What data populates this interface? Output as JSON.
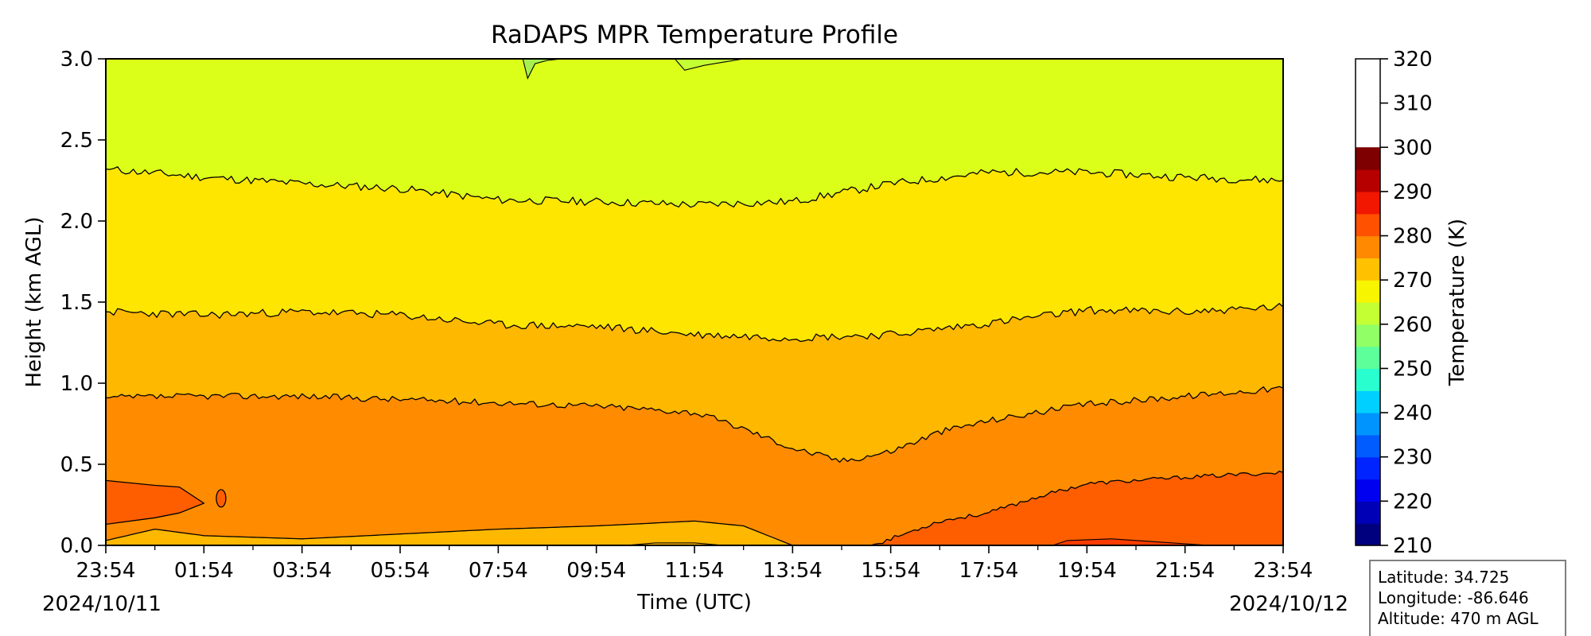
{
  "chart_data": {
    "type": "contourf",
    "title": "RaDAPS MPR Temperature Profile",
    "xlabel": "Time (UTC)",
    "ylabel": "Height (km AGL)",
    "x_ticks": [
      "23:54",
      "01:54",
      "03:54",
      "05:54",
      "07:54",
      "09:54",
      "11:54",
      "13:54",
      "15:54",
      "17:54",
      "19:54",
      "21:54",
      "23:54"
    ],
    "x_tick_hours": [
      0,
      2,
      4,
      6,
      8,
      10,
      12,
      14,
      16,
      18,
      20,
      22,
      24
    ],
    "xlim_hours": [
      0,
      24
    ],
    "start_date": "2024/10/11",
    "end_date": "2024/10/12",
    "y_ticks": [
      "0.0",
      "0.5",
      "1.0",
      "1.5",
      "2.0",
      "2.5",
      "3.0"
    ],
    "ylim": [
      0,
      3
    ],
    "colorbar": {
      "label": "Temperature (K)",
      "range": [
        210,
        320
      ],
      "step": 5,
      "ticks": [
        "210",
        "220",
        "230",
        "240",
        "250",
        "260",
        "270",
        "280",
        "290",
        "300",
        "310",
        "320"
      ],
      "colors": [
        "#00007f",
        "#0000b6",
        "#0000f1",
        "#0024ff",
        "#005cff",
        "#0094ff",
        "#00d0ff",
        "#29ffce",
        "#5dff9a",
        "#91ff66",
        "#c4ff33",
        "#f8f500",
        "#ffc100",
        "#ff8900",
        "#ff5100",
        "#f11700",
        "#b60000",
        "#7f0000"
      ]
    },
    "level_bands": [
      {
        "range": [
          275,
          280
        ],
        "color": "#dcff1a"
      },
      {
        "range": [
          280,
          285
        ],
        "color": "#ffe600"
      },
      {
        "range": [
          285,
          290
        ],
        "color": "#ffb800"
      },
      {
        "range": [
          290,
          295
        ],
        "color": "#ff8c00"
      },
      {
        "range": [
          295,
          300
        ],
        "color": "#ff5e00"
      },
      {
        "range": [
          300,
          305
        ],
        "color": "#ff3c00"
      }
    ],
    "contours": [
      {
        "level": 275,
        "points": [
          [
            0,
            2.32
          ],
          [
            2,
            2.27
          ],
          [
            4,
            2.23
          ],
          [
            6,
            2.2
          ],
          [
            8,
            2.13
          ],
          [
            10,
            2.12
          ],
          [
            12,
            2.1
          ],
          [
            14,
            2.12
          ],
          [
            16,
            2.23
          ],
          [
            18,
            2.3
          ],
          [
            20,
            2.3
          ],
          [
            22,
            2.27
          ],
          [
            24,
            2.25
          ]
        ]
      },
      {
        "level": 280,
        "points": [
          [
            0,
            1.44
          ],
          [
            2,
            1.42
          ],
          [
            4,
            1.44
          ],
          [
            6,
            1.42
          ],
          [
            8,
            1.36
          ],
          [
            10,
            1.35
          ],
          [
            12,
            1.3
          ],
          [
            14,
            1.28
          ],
          [
            16,
            1.3
          ],
          [
            18,
            1.37
          ],
          [
            20,
            1.45
          ],
          [
            22,
            1.44
          ],
          [
            24,
            1.47
          ]
        ]
      },
      {
        "level": 285,
        "points": [
          [
            0,
            0.91
          ],
          [
            2,
            0.92
          ],
          [
            4,
            0.92
          ],
          [
            6,
            0.9
          ],
          [
            8,
            0.88
          ],
          [
            10,
            0.86
          ],
          [
            12,
            0.82
          ],
          [
            13,
            0.72
          ],
          [
            14,
            0.6
          ],
          [
            15,
            0.52
          ],
          [
            16,
            0.58
          ],
          [
            17,
            0.7
          ],
          [
            18,
            0.77
          ],
          [
            20,
            0.87
          ],
          [
            22,
            0.92
          ],
          [
            24,
            0.97
          ]
        ]
      },
      {
        "level": 290,
        "points": [
          [
            0,
            0.03
          ],
          [
            1,
            0.1
          ],
          [
            2,
            0.06
          ],
          [
            4,
            0.04
          ],
          [
            6,
            0.07
          ],
          [
            8,
            0.1
          ],
          [
            10,
            0.12
          ],
          [
            12,
            0.15
          ],
          [
            13,
            0.12
          ],
          [
            14,
            0.0
          ]
        ]
      },
      {
        "level": 290,
        "points": [
          [
            15.6,
            0.0
          ],
          [
            16,
            0.04
          ],
          [
            17,
            0.15
          ],
          [
            18,
            0.2
          ],
          [
            19,
            0.3
          ],
          [
            20,
            0.38
          ],
          [
            22,
            0.42
          ],
          [
            24,
            0.45
          ]
        ]
      },
      {
        "level": 290,
        "points": [
          [
            0,
            0.4
          ],
          [
            1,
            0.37
          ],
          [
            1.5,
            0.36
          ],
          [
            2,
            0.26
          ],
          [
            1.5,
            0.2
          ],
          [
            1,
            0.17
          ],
          [
            0,
            0.13
          ]
        ]
      }
    ]
  },
  "info_box": {
    "latitude": "Latitude: 34.725",
    "longitude": "Longitude: -86.646",
    "altitude": "Altitude: 470 m AGL"
  }
}
